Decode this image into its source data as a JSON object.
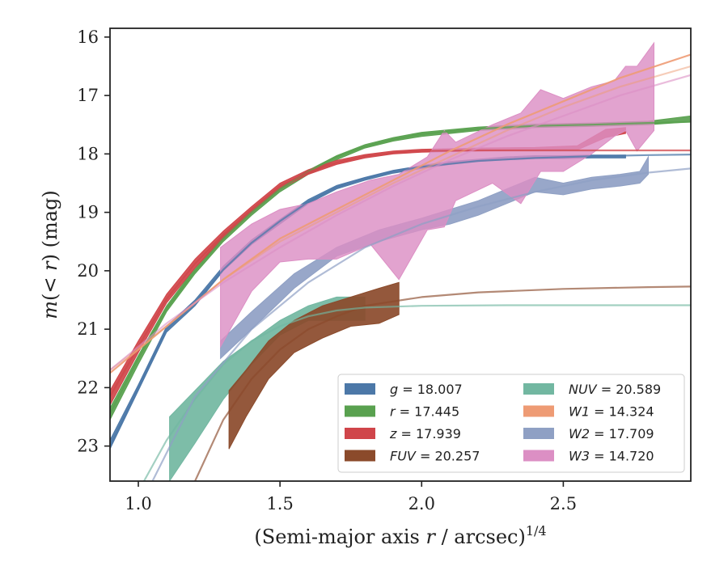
{
  "chart_data": {
    "type": "area",
    "title": "",
    "xlabel": "(Semi-major axis r / arcsec)^1/4",
    "xlabel_main": "(Semi-major axis ",
    "xlabel_var": "r",
    "xlabel_unit": " / arcsec)",
    "xlabel_exp": "1/4",
    "ylabel": "m(< r) (mag)",
    "ylabel_parts": {
      "m": "m",
      "open": "(< ",
      "r": "r",
      "close": ") (mag)"
    },
    "xlim": [
      0.9,
      2.95
    ],
    "ylim": [
      23.6,
      15.85
    ],
    "y_inverted": true,
    "grid": false,
    "legend_position": "bottom-right",
    "x_ticks": [
      1.0,
      1.5,
      2.0,
      2.5
    ],
    "x_tick_labels": [
      "1.0",
      "1.5",
      "2.0",
      "2.5"
    ],
    "y_ticks": [
      16,
      17,
      18,
      19,
      20,
      21,
      22,
      23
    ],
    "y_tick_labels": [
      "16",
      "17",
      "18",
      "19",
      "20",
      "21",
      "22",
      "23"
    ],
    "series": [
      {
        "name": "g",
        "legend": "g = 18.007",
        "color": "#4c78a8",
        "band_x": [
          0.9,
          1.0,
          1.1,
          1.2,
          1.3,
          1.4,
          1.5,
          1.6,
          1.7,
          1.8,
          1.9,
          2.0,
          2.1,
          2.2,
          2.3,
          2.4,
          2.5,
          2.6,
          2.72
        ],
        "band_lo": [
          23.05,
          22.05,
          21.05,
          20.6,
          20.0,
          19.55,
          19.2,
          18.85,
          18.6,
          18.45,
          18.33,
          18.25,
          18.18,
          18.13,
          18.1,
          18.08,
          18.08,
          18.07,
          18.07
        ],
        "band_hi": [
          22.9,
          21.95,
          20.95,
          20.5,
          19.92,
          19.47,
          19.12,
          18.78,
          18.54,
          18.4,
          18.28,
          18.2,
          18.13,
          18.09,
          18.05,
          18.03,
          18.03,
          18.02,
          18.02
        ],
        "fit_x": [
          0.9,
          1.0,
          1.1,
          1.2,
          1.3,
          1.4,
          1.5,
          1.6,
          1.7,
          1.8,
          1.9,
          2.0,
          2.2,
          2.4,
          2.6,
          2.8,
          2.95
        ],
        "fit_y": [
          23.0,
          22.0,
          21.0,
          20.55,
          19.98,
          19.52,
          19.15,
          18.82,
          18.57,
          18.42,
          18.3,
          18.22,
          18.12,
          18.07,
          18.04,
          18.02,
          18.01
        ],
        "fit_opacity": 0.75
      },
      {
        "name": "r",
        "legend": "r = 17.445",
        "color": "#59a14f",
        "band_x": [
          0.9,
          1.0,
          1.1,
          1.2,
          1.3,
          1.4,
          1.5,
          1.6,
          1.7,
          1.8,
          1.9,
          2.0,
          2.2,
          2.4,
          2.6,
          2.8,
          2.95
        ],
        "band_lo": [
          22.55,
          21.6,
          20.7,
          20.05,
          19.5,
          19.05,
          18.65,
          18.35,
          18.1,
          17.9,
          17.78,
          17.7,
          17.6,
          17.55,
          17.53,
          17.5,
          17.45
        ],
        "band_hi": [
          22.35,
          21.45,
          20.6,
          19.95,
          19.4,
          18.97,
          18.58,
          18.28,
          18.03,
          17.84,
          17.72,
          17.63,
          17.54,
          17.49,
          17.47,
          17.44,
          17.35
        ],
        "fit_x": [
          0.9,
          1.0,
          1.1,
          1.2,
          1.3,
          1.4,
          1.5,
          1.6,
          1.7,
          1.8,
          1.9,
          2.0,
          2.2,
          2.4,
          2.6,
          2.8,
          2.95
        ],
        "fit_y": [
          22.45,
          21.5,
          20.65,
          20.0,
          19.45,
          19.0,
          18.6,
          18.3,
          18.05,
          17.87,
          17.75,
          17.66,
          17.57,
          17.52,
          17.5,
          17.47,
          17.45
        ],
        "fit_opacity": 0.8
      },
      {
        "name": "z",
        "legend": "z = 17.939",
        "color": "#d0454a",
        "band_x": [
          0.9,
          1.0,
          1.1,
          1.2,
          1.3,
          1.4,
          1.5,
          1.6,
          1.7,
          1.8,
          1.9,
          2.0,
          2.2,
          2.4,
          2.55,
          2.65,
          2.72
        ],
        "band_lo": [
          22.3,
          21.4,
          20.55,
          19.95,
          19.45,
          19.0,
          18.6,
          18.35,
          18.18,
          18.07,
          18.0,
          17.97,
          17.95,
          17.94,
          17.93,
          17.72,
          17.65
        ],
        "band_hi": [
          22.05,
          21.2,
          20.4,
          19.8,
          19.32,
          18.9,
          18.5,
          18.27,
          18.11,
          18.01,
          17.95,
          17.92,
          17.9,
          17.89,
          17.86,
          17.58,
          17.55
        ],
        "fit_x": [
          0.9,
          1.0,
          1.1,
          1.2,
          1.3,
          1.4,
          1.5,
          1.6,
          1.7,
          1.8,
          1.9,
          2.0,
          2.2,
          2.4,
          2.6,
          2.8,
          2.95
        ],
        "fit_y": [
          22.15,
          21.3,
          20.48,
          19.88,
          19.38,
          18.95,
          18.55,
          18.31,
          18.15,
          18.04,
          17.98,
          17.95,
          17.94,
          17.94,
          17.94,
          17.94,
          17.94
        ],
        "fit_opacity": 0.75
      },
      {
        "name": "FUV",
        "legend": "FUV = 20.257",
        "color": "#8b4a2b",
        "band_x": [
          1.32,
          1.38,
          1.46,
          1.55,
          1.65,
          1.75,
          1.85,
          1.92
        ],
        "band_lo": [
          23.05,
          22.5,
          21.85,
          21.4,
          21.15,
          20.95,
          20.9,
          20.75
        ],
        "band_hi": [
          22.05,
          21.7,
          21.2,
          20.85,
          20.6,
          20.45,
          20.3,
          20.2
        ],
        "fit_x": [
          1.2,
          1.3,
          1.4,
          1.5,
          1.6,
          1.7,
          1.8,
          2.0,
          2.2,
          2.5,
          2.8,
          2.95
        ],
        "fit_y": [
          23.6,
          22.55,
          21.85,
          21.35,
          21.0,
          20.78,
          20.6,
          20.45,
          20.37,
          20.31,
          20.28,
          20.27
        ],
        "fit_opacity": 0.65
      },
      {
        "name": "NUV",
        "legend": "NUV = 20.589",
        "color": "#72b7a1",
        "band_x": [
          1.11,
          1.2,
          1.3,
          1.4,
          1.5,
          1.6,
          1.7,
          1.8
        ],
        "band_lo": [
          23.6,
          22.95,
          22.2,
          21.6,
          21.1,
          20.85,
          20.85,
          20.85
        ],
        "band_hi": [
          22.5,
          22.05,
          21.55,
          21.2,
          20.85,
          20.6,
          20.45,
          20.45
        ],
        "fit_x": [
          1.02,
          1.1,
          1.2,
          1.3,
          1.4,
          1.5,
          1.6,
          1.7,
          1.8,
          2.0,
          2.3,
          2.6,
          2.95
        ],
        "fit_y": [
          23.6,
          22.9,
          22.2,
          21.6,
          21.2,
          20.95,
          20.78,
          20.68,
          20.63,
          20.6,
          20.59,
          20.59,
          20.59
        ],
        "fit_opacity": 0.65
      },
      {
        "name": "W1",
        "legend": "W1 = 14.324",
        "color": "#ee9b74",
        "band_x": [],
        "band_lo": [],
        "band_hi": [],
        "fit_x": [
          0.9,
          1.1,
          1.3,
          1.5,
          1.7,
          1.9,
          2.1,
          2.3,
          2.5,
          2.7,
          2.95
        ],
        "fit_y": [
          21.75,
          20.95,
          20.15,
          19.45,
          18.95,
          18.45,
          17.95,
          17.5,
          17.1,
          16.7,
          16.3
        ],
        "fit_opacity": 0.9,
        "fit2_y": [
          21.7,
          20.95,
          20.15,
          19.5,
          19.0,
          18.5,
          18.05,
          17.6,
          17.2,
          16.85,
          16.5
        ],
        "fit2_opacity": 0.5
      },
      {
        "name": "W2",
        "legend": "W2 = 17.709",
        "color": "#8fa0c4",
        "band_x": [
          1.29,
          1.4,
          1.55,
          1.7,
          1.85,
          2.0,
          2.1,
          2.2,
          2.3,
          2.4,
          2.5,
          2.6,
          2.7,
          2.77,
          2.8
        ],
        "band_lo": [
          21.5,
          21.0,
          20.3,
          19.75,
          19.5,
          19.3,
          19.2,
          19.05,
          18.85,
          18.65,
          18.7,
          18.6,
          18.55,
          18.5,
          18.35
        ],
        "band_hi": [
          21.2,
          20.7,
          20.05,
          19.6,
          19.3,
          19.1,
          18.95,
          18.8,
          18.6,
          18.4,
          18.5,
          18.4,
          18.35,
          18.3,
          18.05
        ],
        "fit_x": [
          1.05,
          1.2,
          1.4,
          1.6,
          1.8,
          2.0,
          2.2,
          2.4,
          2.6,
          2.8,
          2.95
        ],
        "fit_y": [
          23.6,
          22.15,
          21.0,
          20.2,
          19.6,
          19.2,
          18.9,
          18.65,
          18.45,
          18.32,
          18.25
        ],
        "fit_opacity": 0.7
      },
      {
        "name": "W3",
        "legend": "W3 = 14.720",
        "color": "#dc8fc4",
        "band_x": [
          1.29,
          1.4,
          1.5,
          1.6,
          1.7,
          1.82,
          1.92,
          2.02,
          2.08,
          2.12,
          2.25,
          2.35,
          2.42,
          2.5,
          2.6,
          2.68,
          2.72,
          2.76,
          2.82
        ],
        "band_lo": [
          21.3,
          20.35,
          19.85,
          19.8,
          19.8,
          19.55,
          20.15,
          19.3,
          19.25,
          18.8,
          18.5,
          18.85,
          18.3,
          18.3,
          18.0,
          17.7,
          17.6,
          17.95,
          17.6
        ],
        "band_hi": [
          19.6,
          19.2,
          18.95,
          18.85,
          18.65,
          18.45,
          18.35,
          18.05,
          17.6,
          17.8,
          17.5,
          17.3,
          16.9,
          17.05,
          16.85,
          16.75,
          16.5,
          16.5,
          16.1
        ],
        "fit_x": [
          0.9,
          1.1,
          1.3,
          1.5,
          1.7,
          1.9,
          2.1,
          2.3,
          2.5,
          2.7,
          2.95
        ],
        "fit_y": [
          21.7,
          20.9,
          20.2,
          19.6,
          19.05,
          18.55,
          18.1,
          17.7,
          17.35,
          17.0,
          16.65
        ],
        "fit_opacity": 0.6
      }
    ]
  },
  "legend": {
    "columns": [
      [
        {
          "var": "g",
          "value": " = 18.007",
          "color": "#4c78a8"
        },
        {
          "var": "r",
          "value": " = 17.445",
          "color": "#59a14f"
        },
        {
          "var": "z",
          "value": " = 17.939",
          "color": "#d0454a"
        },
        {
          "var": "FUV",
          "value": " = 20.257",
          "color": "#8b4a2b"
        }
      ],
      [
        {
          "var": "NUV",
          "value": " = 20.589",
          "color": "#72b7a1"
        },
        {
          "var": "W1",
          "value": " = 14.324",
          "color": "#ee9b74"
        },
        {
          "var": "W2",
          "value": " = 17.709",
          "color": "#8fa0c4"
        },
        {
          "var": "W3",
          "value": " = 14.720",
          "color": "#dc8fc4"
        }
      ]
    ]
  }
}
